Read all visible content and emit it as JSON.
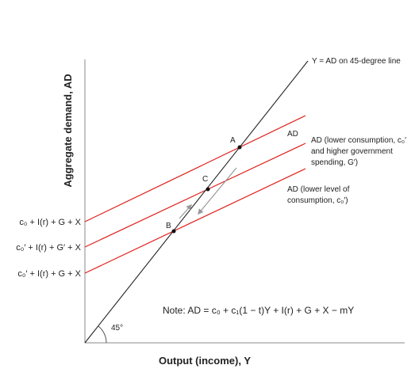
{
  "axes": {
    "y_label": "Aggregate demand, AD",
    "x_label": "Output (income), Y"
  },
  "line_45": {
    "label": "Y = AD on 45-degree line",
    "angle_label": "45°"
  },
  "ad_lines": [
    {
      "intercept": "c₀ + I(r) + G + X",
      "label_lines": [
        "AD"
      ]
    },
    {
      "intercept": "c₀′ + I(r) + G′ + X",
      "label_lines": [
        "AD (lower consumption, c₀′",
        "and higher government",
        "spending, G′)"
      ]
    },
    {
      "intercept": "c₀′ + I(r) + G + X",
      "label_lines": [
        "AD (lower level of",
        "consumption, c₀′)"
      ]
    }
  ],
  "points": [
    "A",
    "C",
    "B"
  ],
  "note": "Note: AD = c₀ + c₁(1 − t)Y + I(r) + G + X − mY"
}
